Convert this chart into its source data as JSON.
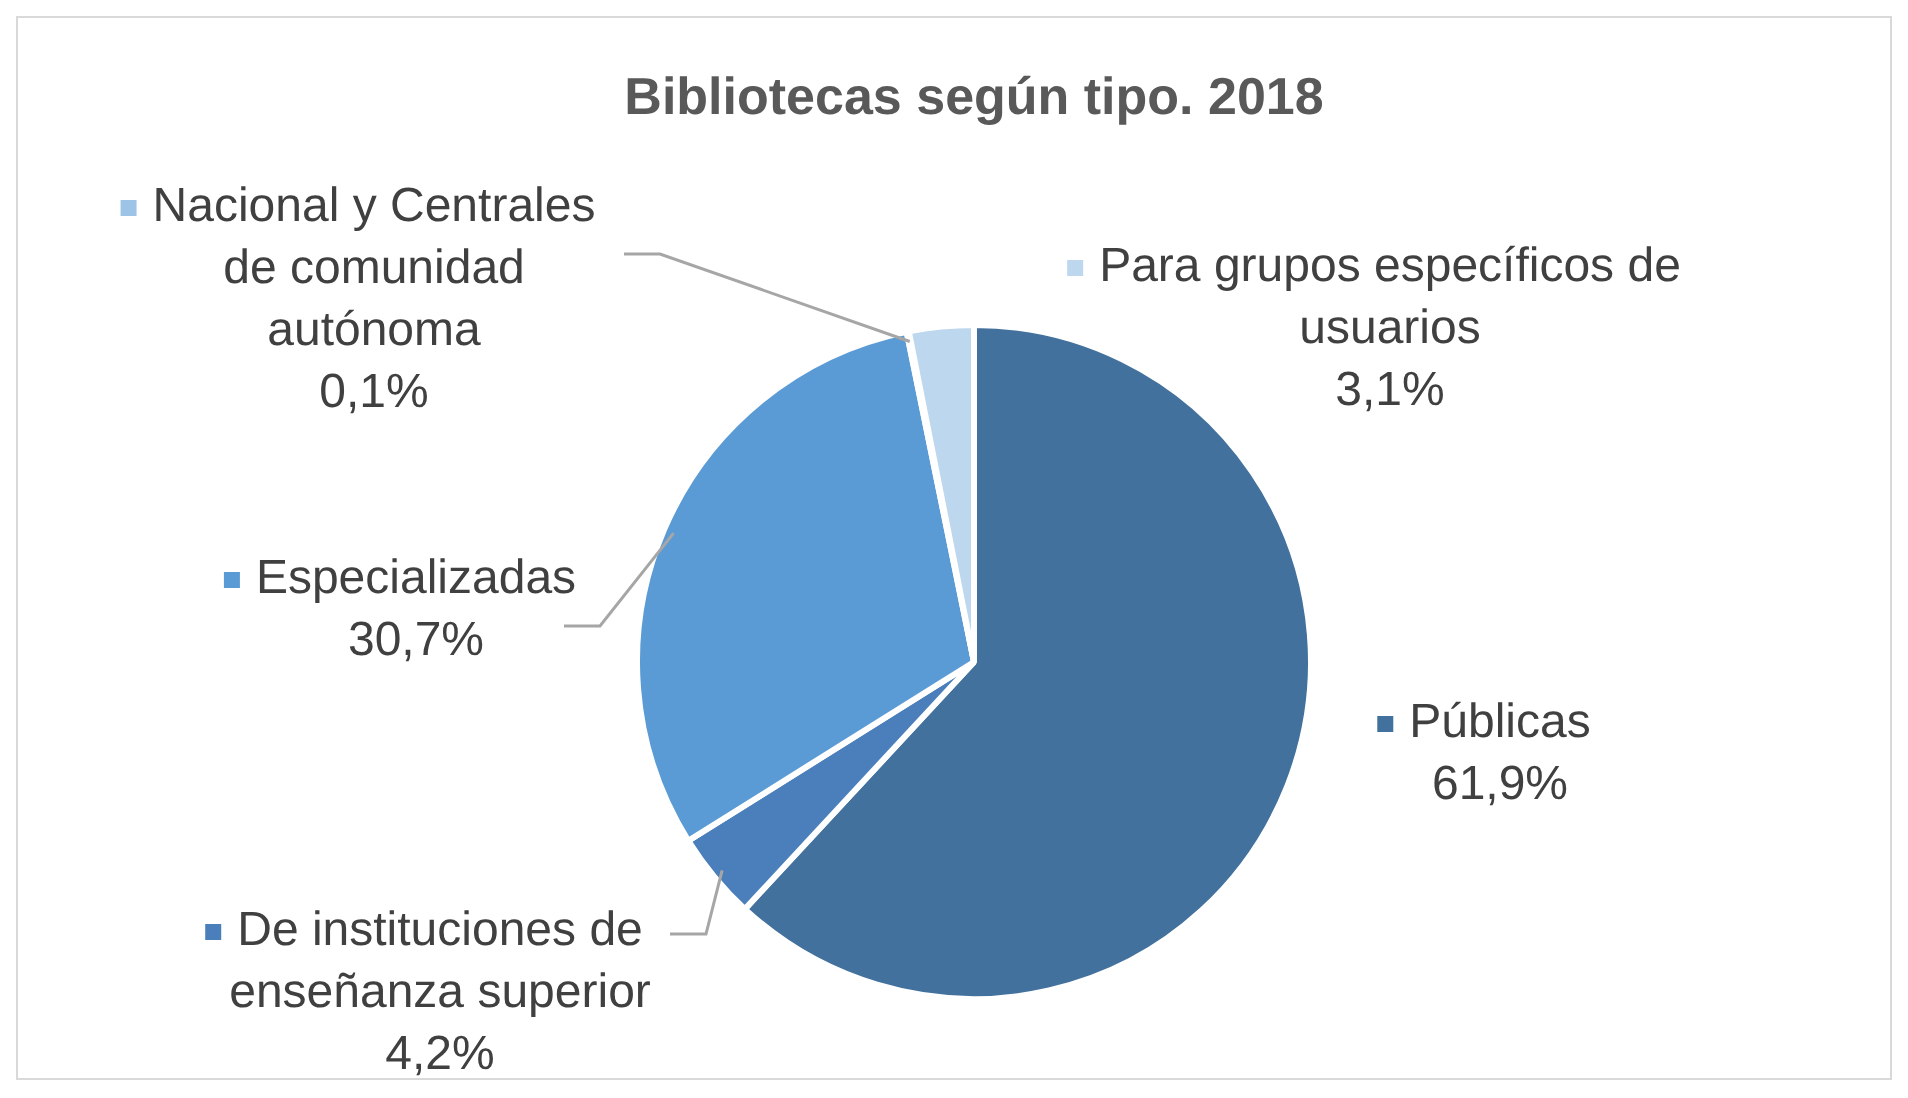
{
  "chart_data": {
    "type": "pie",
    "title": "Bibliotecas según tipo. 2018",
    "categories": [
      "Públicas",
      "De instituciones de enseñanza superior",
      "Especializadas",
      "Nacional y Centrales de comunidad autónoma",
      "Para grupos específicos de usuarios"
    ],
    "values": [
      61.9,
      4.2,
      30.7,
      0.1,
      3.1
    ],
    "value_labels": [
      "61,9%",
      "4,2%",
      "30,7%",
      "0,1%",
      "3,1%"
    ],
    "colors": [
      "#41719c",
      "#4a7fbb",
      "#5b9bd5",
      "#9dc3e6",
      "#bdd7ee"
    ],
    "legend": "left"
  }
}
